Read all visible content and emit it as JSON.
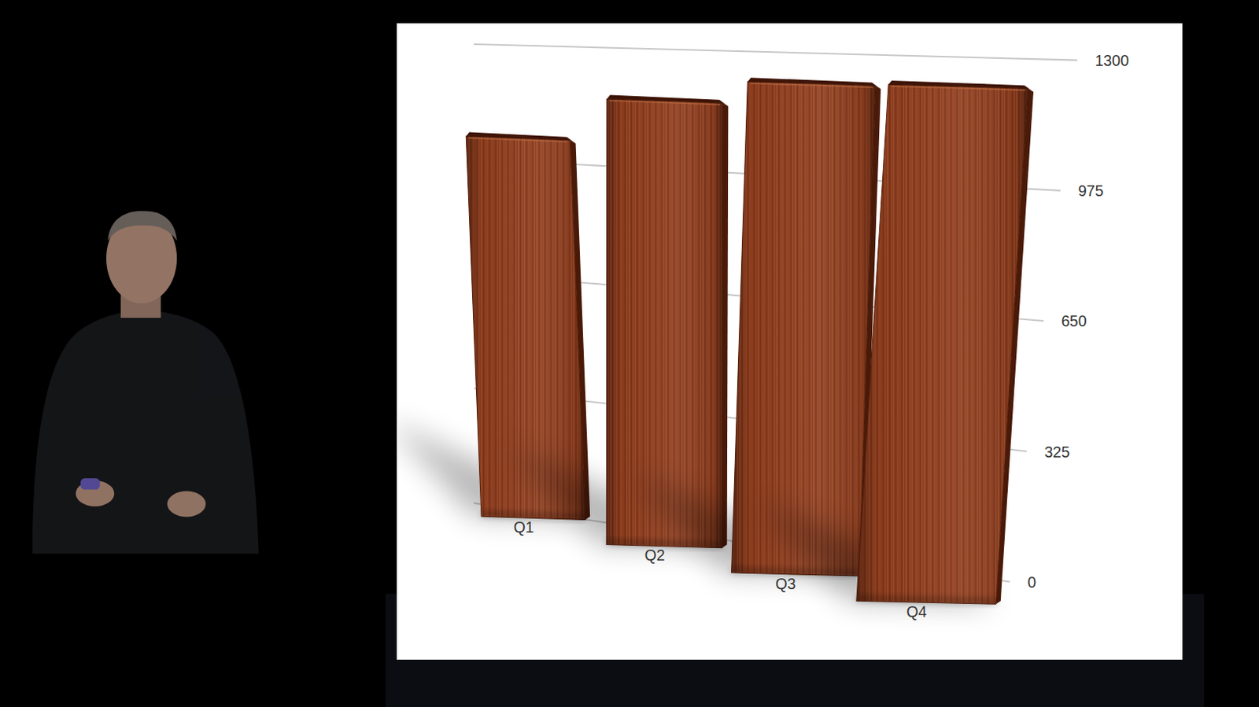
{
  "chart_data": {
    "type": "bar",
    "categories": [
      "Q1",
      "Q2",
      "Q3",
      "Q4"
    ],
    "values": [
      1045,
      1165,
      1225,
      1230
    ],
    "color": "#8b3a1c",
    "ylim": [
      0,
      1300
    ],
    "yticks": [
      0,
      325,
      650,
      975,
      1300
    ],
    "grid": true
  }
}
